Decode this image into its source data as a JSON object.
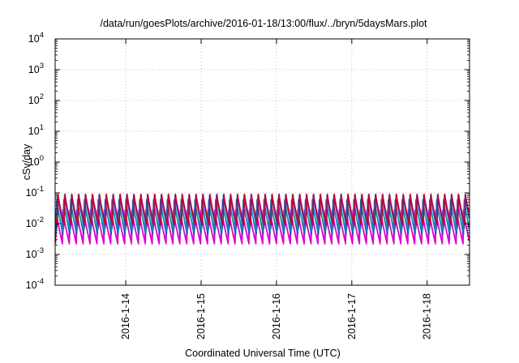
{
  "chart_data": {
    "type": "line",
    "title": "/data/run/goesPlots/archive/2016-01-18/13:00/flux/../bryn/5daysMars.plot",
    "xlabel": "Coordinated Universal Time (UTC)",
    "ylabel": "cSv/day",
    "y_scale": "log",
    "ylim": [
      0.0001,
      10000
    ],
    "y_ticks": [
      {
        "value": 0.0001,
        "base": "10",
        "exp": "-4"
      },
      {
        "value": 0.001,
        "base": "10",
        "exp": "-3"
      },
      {
        "value": 0.01,
        "base": "10",
        "exp": "-2"
      },
      {
        "value": 0.1,
        "base": "10",
        "exp": "-1"
      },
      {
        "value": 1,
        "base": "10",
        "exp": "0"
      },
      {
        "value": 10,
        "base": "10",
        "exp": "1"
      },
      {
        "value": 100,
        "base": "10",
        "exp": "2"
      },
      {
        "value": 1000,
        "base": "10",
        "exp": "3"
      },
      {
        "value": 10000,
        "base": "10",
        "exp": "4"
      }
    ],
    "xlim": [
      "2016-01-13 01:30",
      "2016-01-18 13:30"
    ],
    "x_ticks": [
      "2016-1-14",
      "2016-1-15",
      "2016-1-16",
      "2016-1-17",
      "2016-1-18"
    ],
    "grid": true,
    "legend": "none",
    "cycle_hours": 2.2,
    "series": [
      {
        "color": "#ff00ff",
        "peak": 0.028,
        "trough": 0.0026
      },
      {
        "color": "#dd00cc",
        "peak": 0.022,
        "trough": 0.0022
      },
      {
        "color": "#2f4fa0",
        "peak": 0.06,
        "trough": 0.0045
      },
      {
        "color": "#00a0a0",
        "peak": 0.035,
        "trough": 0.006
      },
      {
        "color": "#3060e0",
        "peak": 0.085,
        "trough": 0.007
      },
      {
        "color": "#c00030",
        "peak": 0.09,
        "trough": 0.009
      }
    ]
  }
}
